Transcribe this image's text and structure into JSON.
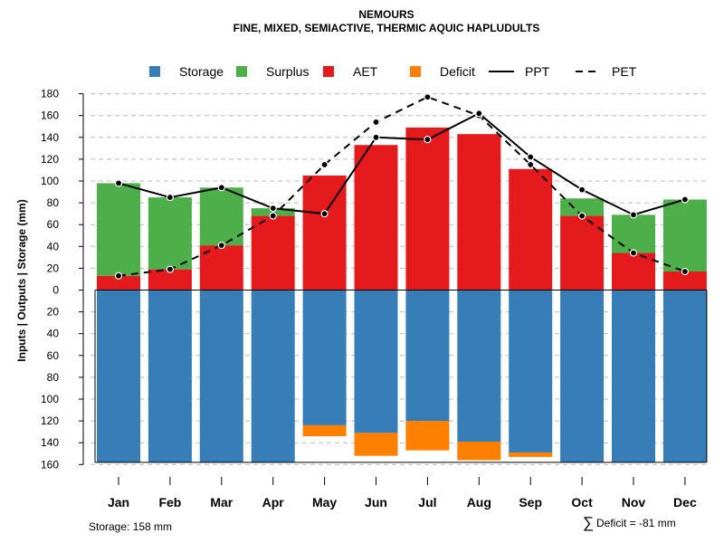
{
  "chart_data": {
    "type": "bar",
    "title": "NEMOURS",
    "subtitle": "FINE, MIXED, SEMIACTIVE, THERMIC AQUIC HAPLUDULTS",
    "ylabel": "Inputs | Outputs | Storage    (mm)",
    "ylim": [
      -160,
      180
    ],
    "yticks_above": [
      "180",
      "160",
      "140",
      "120",
      "100",
      "80",
      "60",
      "40",
      "20",
      "0"
    ],
    "yticks_below": [
      "20",
      "40",
      "60",
      "80",
      "100",
      "120",
      "140",
      "160"
    ],
    "categories": [
      "Jan",
      "Feb",
      "Mar",
      "Apr",
      "May",
      "Jun",
      "Jul",
      "Aug",
      "Sep",
      "Oct",
      "Nov",
      "Dec"
    ],
    "legend": {
      "storage": "Storage",
      "surplus": "Surplus",
      "aet": "AET",
      "deficit": "Deficit",
      "ppt": "PPT",
      "pet": "PET"
    },
    "colors": {
      "storage": "#377eb8",
      "surplus": "#4daf4a",
      "aet": "#e41a1c",
      "deficit": "#ff7f00",
      "ppt": "#000000",
      "pet": "#000000",
      "grid": "#bbbbbb"
    },
    "aet": [
      13,
      19,
      41,
      68,
      105,
      133,
      149,
      143,
      111,
      68,
      34,
      17
    ],
    "surplus": [
      85,
      66,
      53,
      7,
      0,
      0,
      0,
      0,
      0,
      16,
      35,
      66
    ],
    "ppt": [
      98,
      85,
      94,
      75,
      70,
      140,
      138,
      162,
      122,
      92,
      69,
      83
    ],
    "pet": [
      13,
      19,
      41,
      68,
      115,
      154,
      177,
      160,
      115,
      68,
      34,
      17
    ],
    "storage_depth": [
      158,
      158,
      158,
      158,
      124,
      131,
      120,
      139,
      149,
      158,
      158,
      158
    ],
    "deficit": [
      0,
      0,
      0,
      0,
      10,
      21,
      27,
      17,
      4,
      0,
      0,
      0
    ]
  },
  "footer": {
    "storage_note": "Storage: 158 mm",
    "deficit_symbol": "∑",
    "deficit_note": "Deficit = -81 mm"
  }
}
